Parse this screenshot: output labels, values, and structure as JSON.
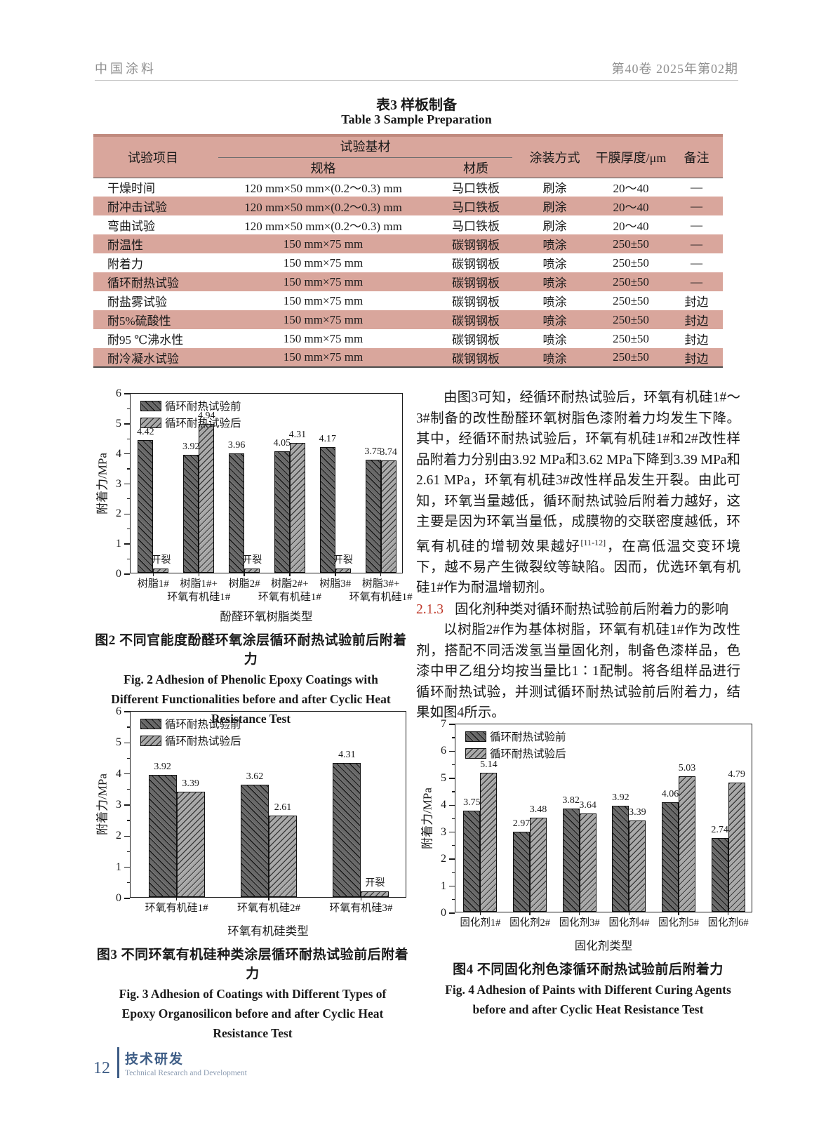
{
  "page_header": {
    "journal": "中国涂料",
    "issue": "第40卷  2025年第02期"
  },
  "table": {
    "title_cn": "表3  样板制备",
    "title_en": "Table 3  Sample Preparation",
    "headers": {
      "item": "试验项目",
      "substrate": "试验基材",
      "spec": "规格",
      "material": "材质",
      "method": "涂装方式",
      "thickness": "干膜厚度/μm",
      "note": "备注"
    },
    "rows": [
      [
        "干燥时间",
        "120 mm×50 mm×(0.2～0.3) mm",
        "马口铁板",
        "刷涂",
        "20～40",
        "—"
      ],
      [
        "耐冲击试验",
        "120 mm×50 mm×(0.2～0.3) mm",
        "马口铁板",
        "刷涂",
        "20～40",
        "—"
      ],
      [
        "弯曲试验",
        "120 mm×50 mm×(0.2～0.3) mm",
        "马口铁板",
        "刷涂",
        "20～40",
        "—"
      ],
      [
        "耐温性",
        "150 mm×75 mm",
        "碳钢钢板",
        "喷涂",
        "250±50",
        "—"
      ],
      [
        "附着力",
        "150 mm×75 mm",
        "碳钢钢板",
        "喷涂",
        "250±50",
        "—"
      ],
      [
        "循环耐热试验",
        "150 mm×75 mm",
        "碳钢钢板",
        "喷涂",
        "250±50",
        "—"
      ],
      [
        "耐盐雾试验",
        "150 mm×75 mm",
        "碳钢钢板",
        "喷涂",
        "250±50",
        "封边"
      ],
      [
        "耐5%硫酸性",
        "150 mm×75 mm",
        "碳钢钢板",
        "喷涂",
        "250±50",
        "封边"
      ],
      [
        "耐95 ℃沸水性",
        "150 mm×75 mm",
        "碳钢钢板",
        "喷涂",
        "250±50",
        "封边"
      ],
      [
        "耐冷凝水试验",
        "150 mm×75 mm",
        "碳钢钢板",
        "喷涂",
        "250±50",
        "封边"
      ]
    ]
  },
  "text_column": {
    "para1_a": "由图3可知，经循环耐热试验后，环氧有机硅1#～3#制备的改性酚醛环氧树脂色漆附着力均发生下降。其中，经循环耐热试验后，环氧有机硅1#和2#改性样品附着力分别由3.92 MPa和3.62 MPa下降到3.39 MPa和2.61 MPa，环氧有机硅3#改性样品发生开裂。由此可知，环氧当量越低，循环耐热试验后附着力越好，这主要是因为环氧当量低，成膜物的交联密度越低，环氧有机硅的增韧效果越好",
    "para1_ref": "[11-12]",
    "para1_b": "，在高低温交变环境下，越不易产生微裂纹等缺陷。因而，优选环氧有机硅1#作为耐温增韧剂。",
    "heading_num": "2.1.3",
    "heading_text": "固化剂种类对循环耐热试验前后附着力的影响",
    "para2": "以树脂2#作为基体树脂，环氧有机硅1#作为改性剂，搭配不同活泼氢当量固化剂，制备色漆样品，色漆中甲乙组分均按当量比1∶1配制。将各组样品进行循环耐热试验，并测试循环耐热试验前后附着力，结果如图4所示。"
  },
  "figures": {
    "fig2": {
      "caption_cn": "图2  不同官能度酚醛环氧涂层循环耐热试验前后附着力",
      "caption_en": "Fig. 2  Adhesion of Phenolic Epoxy Coatings with Different Functionalities before and after Cyclic Heat Resistance Test"
    },
    "fig3": {
      "caption_cn": "图3  不同环氧有机硅种类涂层循环耐热试验前后附着力",
      "caption_en": "Fig. 3  Adhesion of Coatings with Different Types of Epoxy Organosilicon before and after Cyclic Heat Resistance Test"
    },
    "fig4": {
      "caption_cn": "图4  不同固化剂色漆循环耐热试验前后附着力",
      "caption_en": "Fig. 4  Adhesion of Paints with Different Curing Agents before and after Cyclic Heat Resistance Test"
    }
  },
  "chart_data": [
    {
      "id": "fig2",
      "type": "bar",
      "title": "",
      "categories": [
        "树脂1#",
        "树脂1#+\n环氧有机硅1#",
        "树脂2#",
        "树脂2#+\n环氧有机硅1#",
        "树脂3#",
        "树脂3#+\n环氧有机硅1#"
      ],
      "series": [
        {
          "name": "循环耐热试验前",
          "values": [
            4.42,
            3.92,
            3.96,
            4.05,
            4.17,
            3.75
          ],
          "labels": [
            "4.42",
            "3.92",
            "3.96",
            "4.05",
            "4.17",
            "3.75"
          ]
        },
        {
          "name": "循环耐热试验后",
          "values": [
            0.13,
            4.94,
            0.13,
            4.31,
            0.13,
            3.74
          ],
          "labels": [
            "开裂",
            "4.94",
            "开裂",
            "4.31",
            "开裂",
            "3.74"
          ]
        }
      ],
      "xlabel": "酚醛环氧树脂类型",
      "ylabel": "附着力/MPa",
      "ylim": [
        0,
        6
      ],
      "grid": false,
      "legend_position": "upper-left"
    },
    {
      "id": "fig3",
      "type": "bar",
      "title": "",
      "categories": [
        "环氧有机硅1#",
        "环氧有机硅2#",
        "环氧有机硅3#"
      ],
      "series": [
        {
          "name": "循环耐热试验前",
          "values": [
            3.92,
            3.62,
            4.31
          ],
          "labels": [
            "3.92",
            "3.62",
            "4.31"
          ]
        },
        {
          "name": "循环耐热试验后",
          "values": [
            3.39,
            2.61,
            0.18
          ],
          "labels": [
            "3.39",
            "2.61",
            "开裂"
          ]
        }
      ],
      "xlabel": "环氧有机硅类型",
      "ylabel": "附着力/MPa",
      "ylim": [
        0,
        6
      ],
      "grid": false,
      "legend_position": "upper-left"
    },
    {
      "id": "fig4",
      "type": "bar",
      "title": "",
      "categories": [
        "固化剂1#",
        "固化剂2#",
        "固化剂3#",
        "固化剂4#",
        "固化剂5#",
        "固化剂6#"
      ],
      "series": [
        {
          "name": "循环耐热试验前",
          "values": [
            3.75,
            2.97,
            3.82,
            3.92,
            4.06,
            2.74
          ],
          "labels": [
            "3.75",
            "2.97",
            "3.82",
            "3.92",
            "4.06",
            "2.74"
          ]
        },
        {
          "name": "循环耐热试验后",
          "values": [
            5.14,
            3.48,
            3.64,
            3.39,
            5.03,
            4.79
          ],
          "labels": [
            "5.14",
            "3.48",
            "3.64",
            "3.39",
            "5.03",
            "4.79"
          ]
        }
      ],
      "xlabel": "固化剂类型",
      "ylabel": "附着力/MPa",
      "ylim": [
        0,
        7
      ],
      "grid": false,
      "legend_position": "upper-left"
    }
  ],
  "footer": {
    "page_number": "12",
    "label_cn": "技术研发",
    "label_en": "Technical Research and Development"
  },
  "colors": {
    "table_pink": "#d9a69c",
    "table_top_border": "#c08a7e",
    "section_number_red": "#bf3a2b",
    "footer_blue": "#3d5c85",
    "bar_before_gray": "#686868",
    "bar_after_gray": "#a8a8a8"
  }
}
